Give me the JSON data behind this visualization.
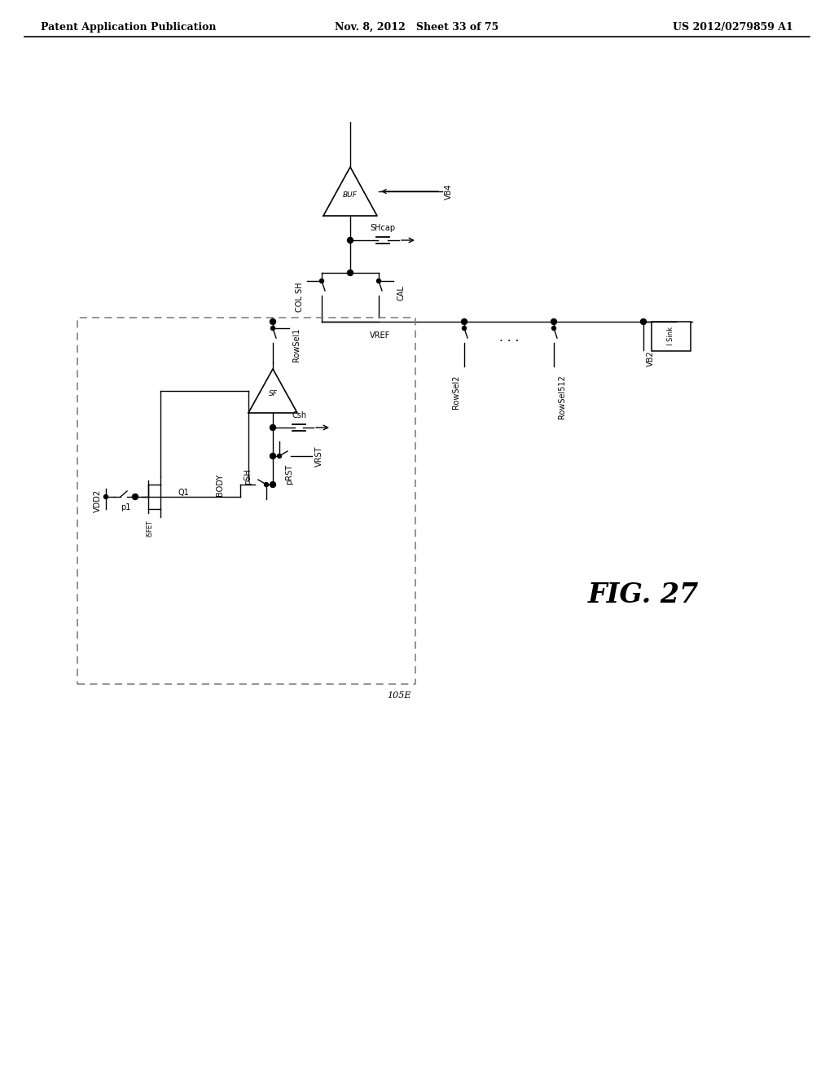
{
  "title": "FIG. 27",
  "header_left": "Patent Application Publication",
  "header_mid": "Nov. 8, 2012   Sheet 33 of 75",
  "header_right": "US 2012/0279859 A1",
  "bg_color": "#ffffff",
  "line_color": "#000000",
  "dashed_color": "#777777",
  "font_size_header": 9,
  "font_size_label": 7,
  "font_size_fig": 24
}
